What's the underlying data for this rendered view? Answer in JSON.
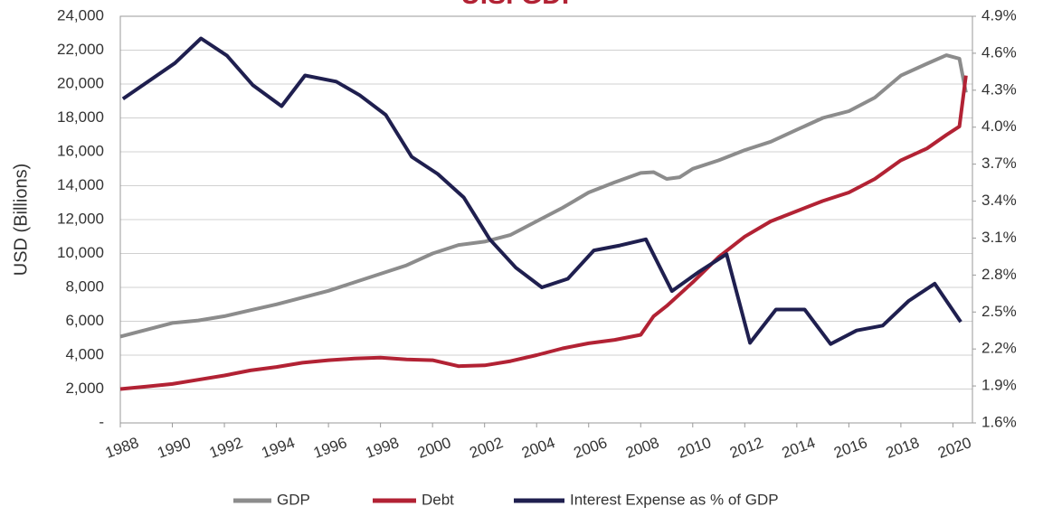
{
  "chart_data": {
    "type": "line",
    "title": "U.S. GDP",
    "ylabel": "USD (Billions)",
    "xlim": [
      1988,
      2020.75
    ],
    "xticks": [
      1988,
      1990,
      1992,
      1994,
      1996,
      1998,
      2000,
      2002,
      2004,
      2006,
      2008,
      2010,
      2012,
      2014,
      2016,
      2018,
      2020
    ],
    "ylim": [
      0,
      24000
    ],
    "yticks": [
      {
        "value": 0,
        "label": "-"
      },
      {
        "value": 2000,
        "label": "2,000"
      },
      {
        "value": 4000,
        "label": "4,000"
      },
      {
        "value": 6000,
        "label": "6,000"
      },
      {
        "value": 8000,
        "label": "8,000"
      },
      {
        "value": 10000,
        "label": "10,000"
      },
      {
        "value": 12000,
        "label": "12,000"
      },
      {
        "value": 14000,
        "label": "14,000"
      },
      {
        "value": 16000,
        "label": "16,000"
      },
      {
        "value": 18000,
        "label": "18,000"
      },
      {
        "value": 20000,
        "label": "20,000"
      },
      {
        "value": 22000,
        "label": "22,000"
      },
      {
        "value": 24000,
        "label": "24,000"
      }
    ],
    "y2lim": [
      1.6,
      4.9
    ],
    "y2ticks": [
      {
        "value": 1.6,
        "label": "1.6%"
      },
      {
        "value": 1.9,
        "label": "1.9%"
      },
      {
        "value": 2.2,
        "label": "2.2%"
      },
      {
        "value": 2.5,
        "label": "2.5%"
      },
      {
        "value": 2.8,
        "label": "2.8%"
      },
      {
        "value": 3.1,
        "label": "3.1%"
      },
      {
        "value": 3.4,
        "label": "3.4%"
      },
      {
        "value": 3.7,
        "label": "3.7%"
      },
      {
        "value": 4.0,
        "label": "4.0%"
      },
      {
        "value": 4.3,
        "label": "4.3%"
      },
      {
        "value": 4.6,
        "label": "4.6%"
      },
      {
        "value": 4.9,
        "label": "4.9%"
      }
    ],
    "grid": true,
    "legend": "bottom",
    "series": [
      {
        "name": "GDP",
        "color": "#8c8c8c",
        "x": [
          1988,
          1989,
          1990,
          1991,
          1992,
          1993,
          1994,
          1995,
          1996,
          1997,
          1998,
          1999,
          2000,
          2001,
          2002,
          2003,
          2004,
          2005,
          2006,
          2007,
          2008,
          2008.5,
          2009,
          2009.5,
          2010,
          2011,
          2012,
          2013,
          2014,
          2015,
          2016,
          2017,
          2018,
          2019,
          2019.75,
          2020.25,
          2020.5
        ],
        "values": [
          5100,
          5500,
          5900,
          6050,
          6300,
          6650,
          7000,
          7400,
          7800,
          8300,
          8800,
          9300,
          10000,
          10500,
          10700,
          11100,
          11900,
          12700,
          13600,
          14200,
          14750,
          14800,
          14400,
          14500,
          15000,
          15500,
          16100,
          16600,
          17300,
          18000,
          18400,
          19200,
          20500,
          21200,
          21700,
          21500,
          19500
        ]
      },
      {
        "name": "Debt",
        "color": "#b22234",
        "x": [
          1988,
          1989,
          1990,
          1991,
          1992,
          1993,
          1994,
          1995,
          1996,
          1997,
          1998,
          1999,
          2000,
          2001,
          2002,
          2003,
          2004,
          2005,
          2006,
          2007,
          2008,
          2008.5,
          2009,
          2010,
          2011,
          2012,
          2013,
          2014,
          2015,
          2016,
          2017,
          2018,
          2019,
          2019.75,
          2020.25,
          2020.5
        ],
        "values": [
          2000,
          2150,
          2300,
          2550,
          2800,
          3100,
          3300,
          3550,
          3700,
          3800,
          3850,
          3750,
          3700,
          3350,
          3400,
          3650,
          4000,
          4400,
          4700,
          4900,
          5200,
          6300,
          6900,
          8300,
          9800,
          11000,
          11900,
          12500,
          13100,
          13600,
          14400,
          15500,
          16200,
          17000,
          17500,
          20500
        ]
      },
      {
        "name": "Interest Expense as % of GDP",
        "color": "#1f1f4f",
        "axis": "y2",
        "x": [
          1988.1,
          1990.1,
          1991.1,
          1992.1,
          1993.1,
          1994.2,
          1995.1,
          1996.3,
          1997.2,
          1998.2,
          1999.2,
          2000.2,
          2001.2,
          2002.2,
          2003.2,
          2004.2,
          2005.2,
          2006.2,
          2007.2,
          2008.2,
          2009.2,
          2010.2,
          2011.3,
          2012.2,
          2013.2,
          2014.3,
          2015.3,
          2016.3,
          2017.3,
          2018.3,
          2019.3,
          2020.3
        ],
        "values": [
          4.23,
          4.52,
          4.72,
          4.58,
          4.34,
          4.17,
          4.42,
          4.37,
          4.26,
          4.1,
          3.76,
          3.62,
          3.43,
          3.09,
          2.86,
          2.7,
          2.77,
          3.0,
          3.04,
          3.09,
          2.67,
          2.82,
          2.97,
          2.25,
          2.52,
          2.52,
          2.24,
          2.35,
          2.39,
          2.59,
          2.73,
          2.42
        ]
      }
    ]
  }
}
